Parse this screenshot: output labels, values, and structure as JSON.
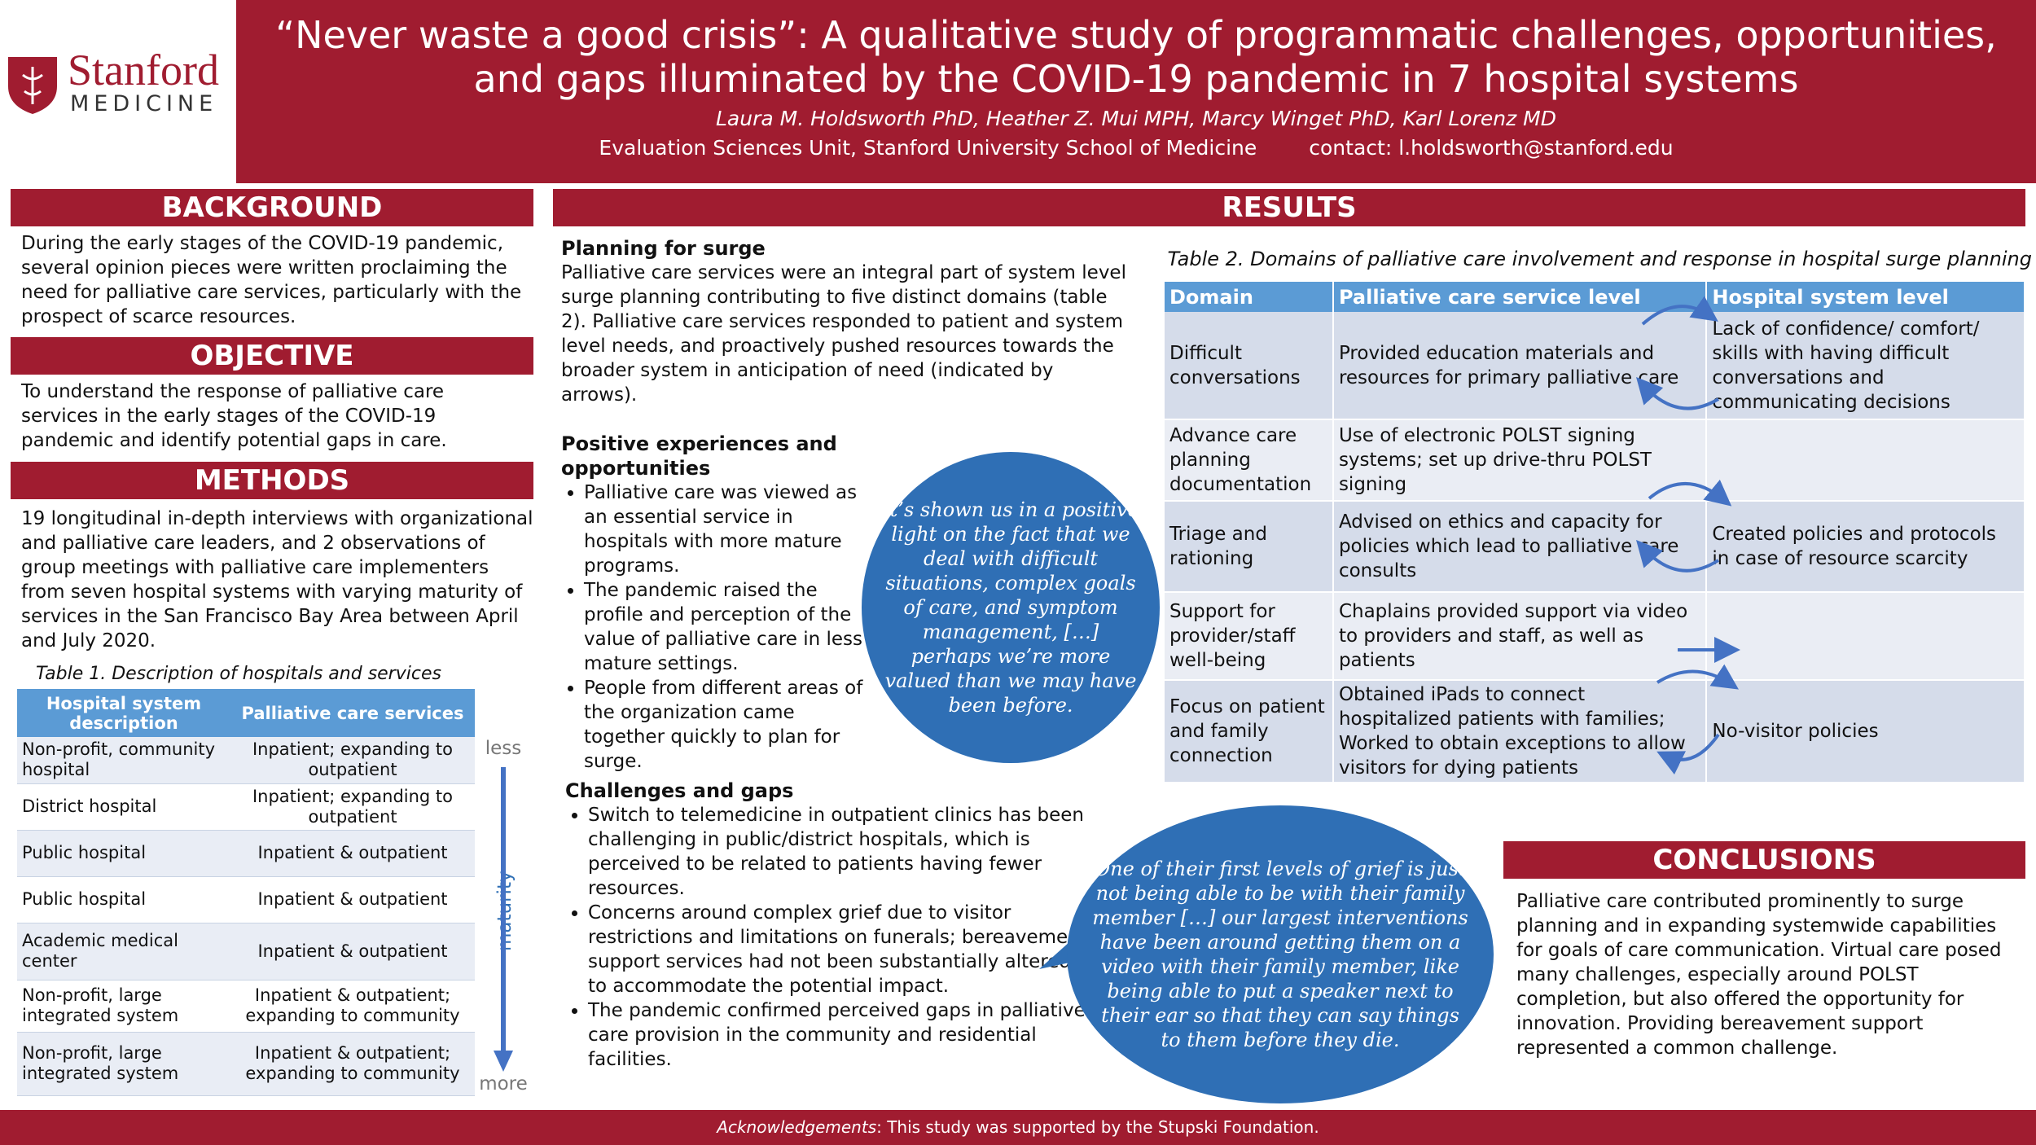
{
  "header": {
    "logo_name": "Stanford",
    "logo_sub": "MEDICINE",
    "title": "“Never waste a good crisis”: A qualitative study of programmatic challenges, opportunities, and gaps illuminated by the COVID-19 pandemic in 7 hospital systems",
    "authors": "Laura M. Holdsworth PhD, Heather Z. Mui MPH, Marcy Winget PhD, Karl Lorenz MD",
    "affiliation": "Evaluation Sciences Unit, Stanford University School of Medicine",
    "contact": "contact: l.holdsworth@stanford.edu"
  },
  "background": {
    "heading": "BACKGROUND",
    "text": "During the early stages of the COVID-19 pandemic, several opinion pieces were written proclaiming the need for palliative care services, particularly with the prospect of scarce resources."
  },
  "objective": {
    "heading": "OBJECTIVE",
    "text": "To understand the response of palliative care services in the early stages of the COVID-19 pandemic and identify potential gaps in care."
  },
  "methods": {
    "heading": "METHODS",
    "text": "19 longitudinal in-depth interviews with organizational and palliative care leaders, and 2 observations of group meetings with palliative care implementers from seven hospital systems with varying maturity of services in the San Francisco Bay Area between April and July 2020.",
    "table_caption": "Table 1. Description of hospitals and services",
    "table": {
      "headers": [
        "Hospital system description",
        "Palliative care services"
      ],
      "rows": [
        [
          "Non-profit, community hospital",
          "Inpatient; expanding to outpatient"
        ],
        [
          "District hospital",
          "Inpatient; expanding to outpatient"
        ],
        [
          "Public hospital",
          "Inpatient & outpatient"
        ],
        [
          "Public hospital",
          "Inpatient & outpatient"
        ],
        [
          "Academic medical center",
          "Inpatient & outpatient"
        ],
        [
          "Non-profit, large integrated system",
          "Inpatient & outpatient; expanding to community"
        ],
        [
          "Non-profit, large integrated system",
          "Inpatient & outpatient; expanding to community"
        ]
      ]
    },
    "scale_top": "less",
    "scale_label": "maturity",
    "scale_bottom": "more"
  },
  "results": {
    "heading": "RESULTS",
    "planning_heading": "Planning for surge",
    "planning_text": "Palliative care services were an integral part of system level surge planning contributing to five distinct domains (table 2). Palliative care services responded to patient and system level needs, and proactively pushed resources towards the broader system in anticipation of need (indicated by arrows).",
    "positive_heading": "Positive experiences and opportunities",
    "positive_bullets": [
      "Palliative care was viewed as an essential service in hospitals with more mature programs.",
      "The pandemic raised the profile and perception of the value of palliative care in less mature settings.",
      "People from different areas of the organization came together quickly to plan for surge."
    ],
    "quote1": "It’s shown us in a positive light on the fact that we deal with difficult situations, complex goals of care, and symptom management, […] perhaps we’re more valued than we may have been before.",
    "challenges_heading": "Challenges and gaps",
    "challenges_bullets": [
      "Switch to telemedicine in outpatient clinics has been challenging in public/district hospitals, which is perceived to be related to patients having fewer resources.",
      "Concerns around complex grief due to visitor restrictions and limitations on funerals; bereavement support services had not been substantially altered to accommodate the potential impact.",
      "The pandemic confirmed perceived gaps in palliative care provision in the community and residential facilities."
    ],
    "quote2": "One of their first levels of grief is just not being able to be with their family member […] our largest interventions have been around getting them on a video with their family member, like being able to put a speaker next to their ear so that they can say things to them before they die.",
    "table_caption": "Table 2. Domains of palliative care involvement and response in hospital surge planning",
    "table": {
      "headers": [
        "Domain",
        "Palliative care service level",
        "Hospital system level"
      ],
      "rows": [
        [
          "Difficult conversations",
          "Provided education materials and resources for primary palliative care",
          "Lack of confidence/ comfort/ skills with having difficult conversations and communicating decisions"
        ],
        [
          "Advance care planning documentation",
          "Use of electronic POLST signing systems; set up drive-thru POLST signing",
          null
        ],
        [
          "Triage and rationing",
          "Advised on ethics and capacity for policies which lead to palliative care consults",
          "Created policies and protocols in case of resource scarcity"
        ],
        [
          "Support for provider/staff well-being",
          "Chaplains provided support via video to providers and staff, as well as patients",
          null
        ],
        [
          "Focus on patient and family connection",
          "Obtained iPads to connect hospitalized patients with families; Worked to obtain exceptions to allow visitors for dying patients",
          "No-visitor policies"
        ]
      ]
    }
  },
  "conclusions": {
    "heading": "CONCLUSIONS",
    "text": "Palliative care contributed prominently to surge planning and in expanding systemwide capabilities for goals of care communication. Virtual care posed many challenges, especially around POLST completion, but also offered the opportunity for innovation. Providing bereavement support represented a common challenge."
  },
  "footer": {
    "label": "Acknowledgements",
    "text": ": This study was supported by the Stupski Foundation."
  }
}
